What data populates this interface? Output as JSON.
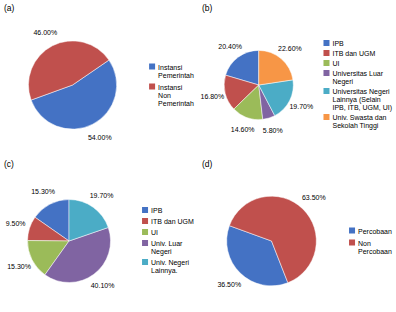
{
  "chart_data": [
    {
      "type": "pie",
      "title": "(a)",
      "categories": [
        "Instansi\nPemerintah",
        "Instansi\nNon\nPemerintah"
      ],
      "values": [
        54.0,
        46.0
      ],
      "value_labels": [
        "54.00%",
        "46.00%"
      ],
      "colors": [
        "#4472C4",
        "#C0504D"
      ],
      "data_labels": true,
      "legend": "right"
    },
    {
      "type": "pie",
      "title": "(b)",
      "categories": [
        "IPB",
        "ITB dan UGM",
        "UI",
        "Universitas Luar\nNegeri",
        "Universitas Negeri\nLainnya (Selain\nIPB, ITB, UGM, UI)",
        "Univ. Swasta dan\nSekolah Tinggi"
      ],
      "values": [
        20.4,
        16.8,
        14.6,
        5.8,
        19.7,
        22.6
      ],
      "value_labels": [
        "20.40%",
        "16.80%",
        "14.60%",
        "5.80%",
        "19.70%",
        "22.60%"
      ],
      "colors": [
        "#4472C4",
        "#C0504D",
        "#9BBB59",
        "#8064A2",
        "#4BACC6",
        "#F79646"
      ],
      "data_labels": true,
      "legend": "right"
    },
    {
      "type": "pie",
      "title": "(c)",
      "categories": [
        "IPB",
        "ITB dan UGM",
        "UI",
        "Univ. Luar\nNegeri",
        "Univ. Negeri\nLainnya."
      ],
      "values": [
        15.3,
        9.5,
        15.3,
        40.1,
        19.7
      ],
      "value_labels": [
        "15.30%",
        "9.50%",
        "15.30%",
        "40.10%",
        "19.70%"
      ],
      "colors": [
        "#4472C4",
        "#C0504D",
        "#9BBB59",
        "#8064A2",
        "#4BACC6"
      ],
      "data_labels": true,
      "legend": "right"
    },
    {
      "type": "pie",
      "title": "(d)",
      "categories": [
        "Percobaan",
        "Non\nPercobaan"
      ],
      "values": [
        36.5,
        63.5
      ],
      "value_labels": [
        "36.50%",
        "63.50%"
      ],
      "colors": [
        "#4472C4",
        "#C0504D"
      ],
      "data_labels": true,
      "legend": "right"
    }
  ]
}
